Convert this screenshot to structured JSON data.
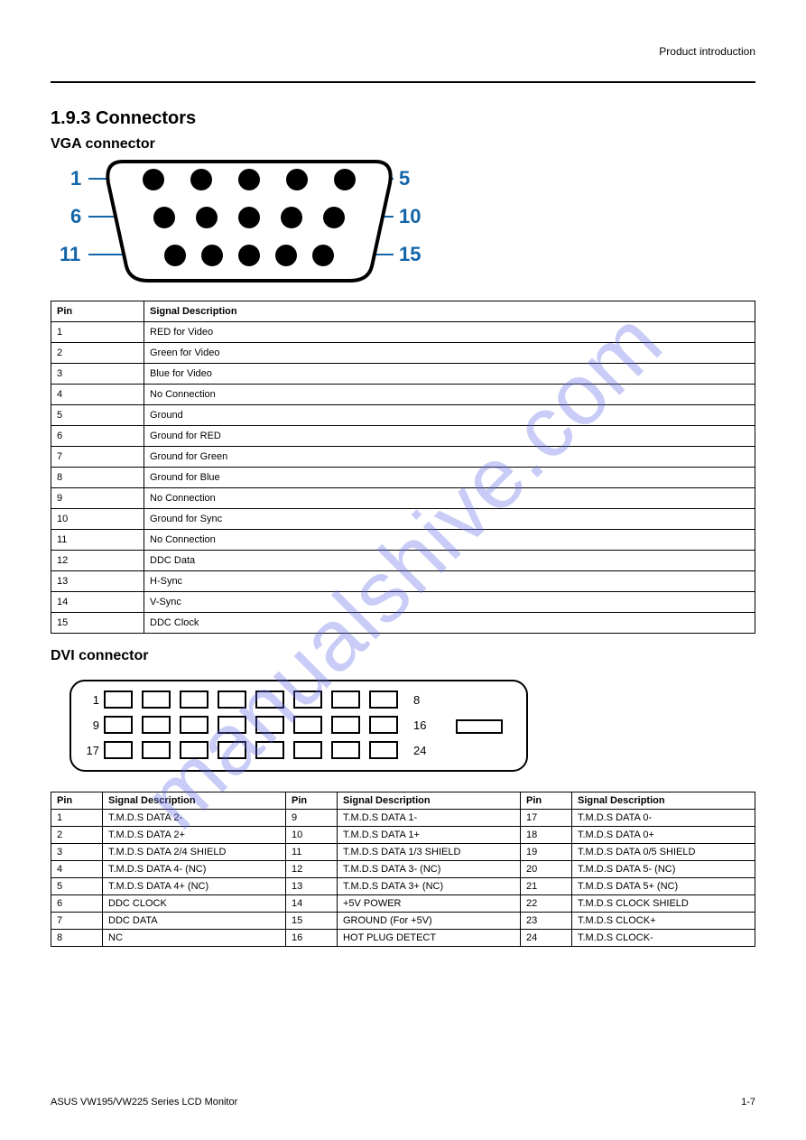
{
  "header": {
    "title_right": "Product introduction"
  },
  "section": {
    "heading": "1.9.3 Connectors",
    "sub_vga": "VGA connector",
    "sub_dvi": "DVI connector"
  },
  "vga_diagram": {
    "labels_left": [
      "1",
      "6",
      "11"
    ],
    "labels_right": [
      "5",
      "10",
      "15"
    ],
    "label_color": "#1265a8",
    "line_color": "#1265a8",
    "pin_color": "#000000",
    "shell_stroke": "#000000",
    "shell_fill": "#ffffff"
  },
  "vga_table": {
    "columns": [
      "Pin",
      "Signal Description"
    ],
    "rows": [
      [
        "1",
        "RED for Video"
      ],
      [
        "2",
        "Green for Video"
      ],
      [
        "3",
        "Blue for Video"
      ],
      [
        "4",
        "No Connection"
      ],
      [
        "5",
        "Ground"
      ],
      [
        "6",
        "Ground for RED"
      ],
      [
        "7",
        "Ground for Green"
      ],
      [
        "8",
        "Ground for Blue"
      ],
      [
        "9",
        "No Connection"
      ],
      [
        "10",
        "Ground for Sync"
      ],
      [
        "11",
        "No Connection"
      ],
      [
        "12",
        "DDC Data"
      ],
      [
        "13",
        "H-Sync"
      ],
      [
        "14",
        "V-Sync"
      ],
      [
        "15",
        "DDC Clock"
      ]
    ]
  },
  "dvi_diagram": {
    "row_starts": [
      "1",
      "9",
      "17"
    ],
    "row_ends": [
      "8",
      "16",
      "24"
    ],
    "label_fontsize": 12,
    "pin_stroke": "#000000",
    "shell_stroke": "#000000"
  },
  "dvi_table": {
    "columns": [
      "Pin",
      "Signal Description",
      "Pin",
      "Signal Description",
      "Pin",
      "Signal Description"
    ],
    "rows": [
      [
        "1",
        "T.M.D.S DATA 2-",
        "9",
        "T.M.D.S DATA 1-",
        "17",
        "T.M.D.S DATA 0-"
      ],
      [
        "2",
        "T.M.D.S DATA 2+",
        "10",
        "T.M.D.S DATA 1+",
        "18",
        "T.M.D.S DATA 0+"
      ],
      [
        "3",
        "T.M.D.S DATA 2/4 SHIELD",
        "11",
        "T.M.D.S DATA 1/3 SHIELD",
        "19",
        "T.M.D.S DATA 0/5 SHIELD"
      ],
      [
        "4",
        "T.M.D.S DATA 4- (NC)",
        "12",
        "T.M.D.S DATA 3- (NC)",
        "20",
        "T.M.D.S DATA 5- (NC)"
      ],
      [
        "5",
        "T.M.D.S DATA 4+ (NC)",
        "13",
        "T.M.D.S DATA 3+ (NC)",
        "21",
        "T.M.D.S DATA 5+ (NC)"
      ],
      [
        "6",
        "DDC CLOCK",
        "14",
        "+5V POWER",
        "22",
        "T.M.D.S CLOCK SHIELD"
      ],
      [
        "7",
        "DDC DATA",
        "15",
        "GROUND (For +5V)",
        "23",
        "T.M.D.S CLOCK+"
      ],
      [
        "8",
        "NC",
        "16",
        "HOT PLUG DETECT",
        "24",
        "T.M.D.S CLOCK-"
      ]
    ]
  },
  "watermark": {
    "text": "manualshive.com",
    "color_rgba": "rgba(100,110,230,0.35)",
    "angle_deg": 45
  },
  "footer": {
    "left": "ASUS VW195/VW225 Series LCD Monitor",
    "right": "1-7"
  }
}
